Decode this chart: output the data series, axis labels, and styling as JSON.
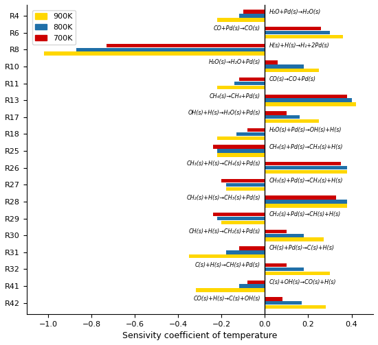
{
  "reactions": [
    "R4",
    "R6",
    "R8",
    "R10",
    "R11",
    "R13",
    "R17",
    "R18",
    "R25",
    "R26",
    "R27",
    "R28",
    "R29",
    "R30",
    "R31",
    "R32",
    "R41",
    "R42"
  ],
  "left_labels": [
    "",
    "CO+Pd(s)→CO(s)",
    "",
    "H₂O(s)→H₂O+Pd(s)",
    "",
    "CH₄(s)→CH₄+Pd(s)",
    "OH(s)+H(s)→H₂O(s)+Pd(s)",
    "",
    "",
    "CH₃(s)+H(s)→CH₄(s)+Pd(s)",
    "",
    "CH₂(s)+H(s)→CH₃(s)+Pd(s)",
    "",
    "CH(s)+H(s)→CH₂(s)+Pd(s)",
    "",
    "C(s)+H(s)→CH(s)+Pd(s)",
    "",
    "CO(s)+H(s)→C(s)+OH(s)"
  ],
  "right_labels": [
    "H₂O+Pd(s)→H₂O(s)",
    "",
    "H(s)+H(s)→H₂+2Pd(s)",
    "",
    "CO(s)→CO+Pd(s)",
    "",
    "",
    "H₂O(s)+Pd(s)→OH(s)+H(s)",
    "CH₄(s)+Pd(s)→CH₃(s)+H(s)",
    "",
    "CH₃(s)+Pd(s)→CH₂(s)+H(s)",
    "",
    "CH₂(s)+Pd(s)→CH(s)+H(s)",
    "",
    "CH(s)+Pd(s)→C(s)+H(s)",
    "",
    "C(s)+OH(s)→CO(s)+H(s)",
    ""
  ],
  "values_900K": [
    -0.22,
    0.36,
    -1.02,
    0.25,
    -0.22,
    0.42,
    0.25,
    -0.22,
    -0.22,
    0.38,
    -0.18,
    0.38,
    -0.2,
    0.27,
    -0.35,
    0.3,
    -0.32,
    0.28
  ],
  "values_800K": [
    -0.12,
    0.3,
    -0.87,
    0.18,
    -0.14,
    0.4,
    0.16,
    -0.13,
    -0.22,
    0.38,
    -0.18,
    0.38,
    -0.22,
    0.18,
    -0.18,
    0.18,
    -0.12,
    0.17
  ],
  "values_700K": [
    -0.1,
    0.26,
    -0.73,
    0.06,
    -0.12,
    0.38,
    0.1,
    -0.08,
    -0.24,
    0.35,
    -0.2,
    0.33,
    -0.24,
    0.1,
    -0.12,
    0.1,
    -0.08,
    0.08
  ],
  "color_900K": "#FFD700",
  "color_800K": "#1F6FA8",
  "color_700K": "#CC0000",
  "xlabel": "Sensivity coefficient of temperature",
  "xlim": [
    -1.1,
    0.5
  ],
  "xticks": [
    -1.0,
    -0.8,
    -0.6,
    -0.4,
    -0.2,
    0.0,
    0.2,
    0.4
  ]
}
